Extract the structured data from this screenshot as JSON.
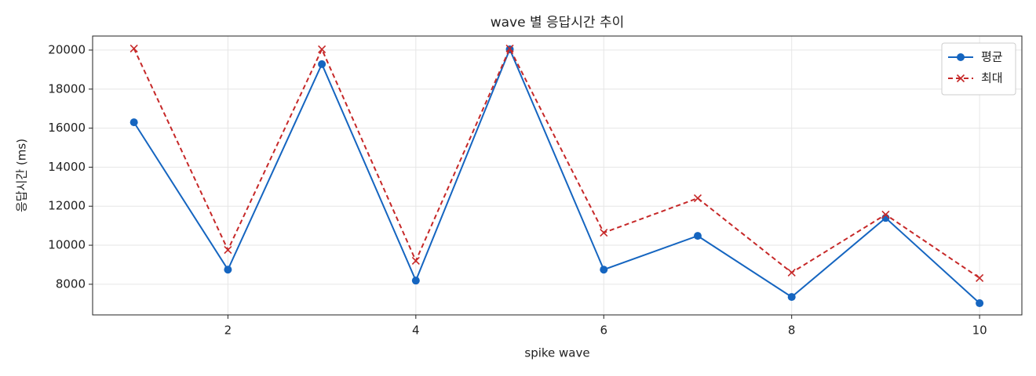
{
  "chart_data": {
    "type": "line",
    "title": "wave 별 응답시간 추이",
    "xlabel": "spike wave",
    "ylabel": "응답시간 (ms)",
    "x": [
      1,
      2,
      3,
      4,
      5,
      6,
      7,
      8,
      9,
      10
    ],
    "series": [
      {
        "name": "평균",
        "color": "#1565c0",
        "marker": "o",
        "linestyle": "solid",
        "values": [
          16300,
          8750,
          19280,
          8190,
          20040,
          8750,
          10480,
          7350,
          11400,
          7030
        ]
      },
      {
        "name": "최대",
        "color": "#c62828",
        "marker": "x",
        "linestyle": "dashed",
        "values": [
          20080,
          9760,
          20040,
          9200,
          20080,
          10640,
          12410,
          8600,
          11570,
          8320
        ]
      }
    ],
    "xlim": [
      0.56,
      10.45
    ],
    "xticks": [
      2,
      4,
      6,
      8,
      10
    ],
    "ylim": [
      6430,
      20720
    ],
    "yticks": [
      8000,
      10000,
      12000,
      14000,
      16000,
      18000,
      20000
    ],
    "grid": true,
    "legend": "upper right"
  }
}
